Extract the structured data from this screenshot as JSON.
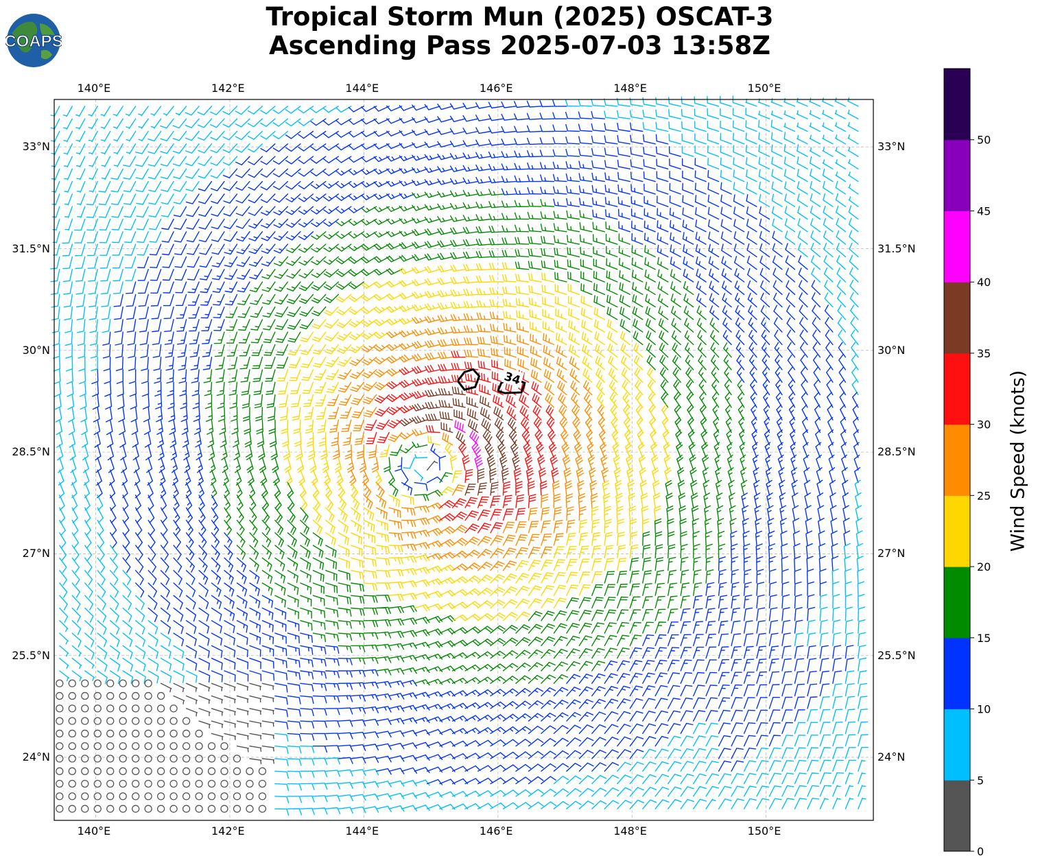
{
  "title": {
    "line1": "Tropical Storm Mun (2025) OSCAT-3",
    "line2": "Ascending Pass 2025-07-03 13:58Z"
  },
  "logo": {
    "text": "COAPS"
  },
  "map": {
    "lon_range": [
      139.38,
      151.6
    ],
    "lat_range": [
      23.07,
      33.7
    ],
    "lon_ticks": [
      "140°E",
      "142°E",
      "144°E",
      "146°E",
      "148°E",
      "150°E"
    ],
    "lat_ticks": [
      "33°N",
      "31.5°N",
      "30°N",
      "28.5°N",
      "27°N",
      "25.5°N",
      "24°N"
    ],
    "grid": true,
    "storm_center": {
      "lon": 144.9,
      "lat": 28.3
    },
    "contour_label": "34",
    "contour_34kt_segments": [
      [
        [
          145.4,
          29.55
        ],
        [
          145.5,
          29.68
        ],
        [
          145.63,
          29.72
        ],
        [
          145.72,
          29.62
        ],
        [
          145.66,
          29.46
        ],
        [
          145.5,
          29.42
        ],
        [
          145.4,
          29.55
        ]
      ],
      [
        [
          146.0,
          29.4
        ],
        [
          146.05,
          29.52
        ],
        [
          146.2,
          29.6
        ],
        [
          146.4,
          29.52
        ],
        [
          146.35,
          29.38
        ],
        [
          146.1,
          29.37
        ],
        [
          146.0,
          29.4
        ]
      ]
    ]
  },
  "colorbar": {
    "label": "Wind Speed (knots)",
    "ticks": [
      "0",
      "5",
      "10",
      "15",
      "20",
      "25",
      "30",
      "35",
      "40",
      "45",
      "50"
    ],
    "colors": [
      "#555555",
      "#00bfff",
      "#0033ff",
      "#008b00",
      "#ffd700",
      "#ff8c00",
      "#ff1010",
      "#7a3a24",
      "#ff00ff",
      "#8800bb",
      "#2a0055"
    ]
  }
}
